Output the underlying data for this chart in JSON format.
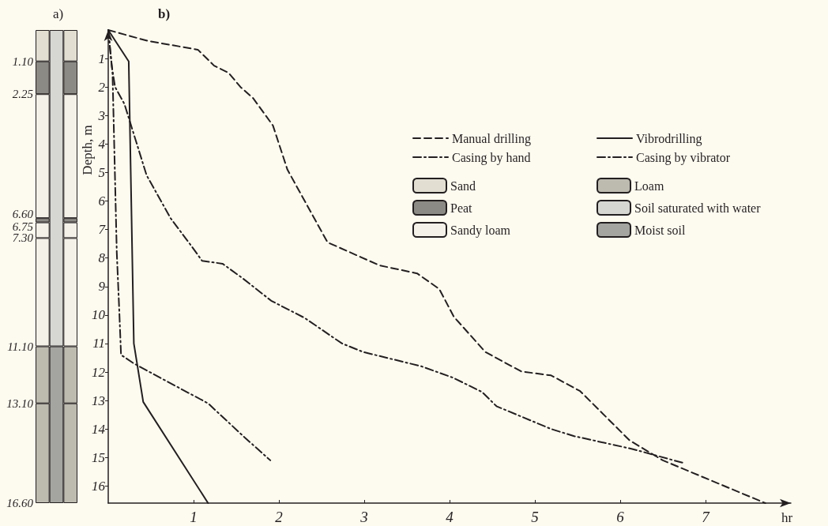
{
  "chart_data": [
    {
      "type": "bar",
      "title": "a)",
      "stacked": true,
      "categories": [
        null,
        null,
        null
      ],
      "ylim": [
        16.6,
        0
      ],
      "yticks": [
        {
          "value": 1.1,
          "label": "1.10"
        },
        {
          "value": 2.25,
          "label": "2.25"
        },
        {
          "value": 6.6,
          "label": "6.60"
        },
        {
          "value": 6.75,
          "label": "6.75"
        },
        {
          "value": 7.3,
          "label": "7.30"
        },
        {
          "value": 11.1,
          "label": "11.10"
        },
        {
          "value": 13.1,
          "label": "13.10"
        },
        {
          "value": 16.6,
          "label": "16.60"
        }
      ],
      "tick_labels": "y",
      "grid": false,
      "legend": "right",
      "series": [
        {
          "name": "Sand",
          "color": "#e2dfd2",
          "values": [
            1.1,
            null,
            1.1
          ]
        },
        {
          "name": "Peat",
          "color": "#8c8a84",
          "values": [
            1.15,
            null,
            1.15
          ]
        },
        {
          "name": "Sandy loam",
          "color": "#f3f1e8",
          "values": [
            4.35,
            null,
            4.35
          ]
        },
        {
          "color": "#8c8a84",
          "values": [
            0.15,
            null,
            0.15
          ]
        },
        {
          "color": "#f3f1e8",
          "values": [
            0.55,
            null,
            0.55
          ]
        },
        {
          "color": "#f3f1e8",
          "values": [
            3.8,
            null,
            3.8
          ]
        },
        {
          "name": "Loam",
          "color": "#bdbab0",
          "values": [
            2.0,
            null,
            2.0
          ]
        },
        {
          "color": "#bdbab0",
          "values": [
            3.5,
            null,
            3.5
          ]
        },
        {
          "name": "Soil saturated with water",
          "color": "#d6d6d2",
          "values": [
            null,
            11.1,
            null
          ]
        },
        {
          "name": "Moist soil",
          "color": "#a4a4a0",
          "values": [
            null,
            5.5,
            null
          ]
        }
      ]
    },
    {
      "type": "line",
      "title": "b)",
      "xlabel": "hr",
      "ylabel": "Depth, m",
      "xlim": [
        0,
        8
      ],
      "ylim": [
        16.6,
        0
      ],
      "xticks": [
        1,
        2,
        3,
        4,
        5,
        6,
        7
      ],
      "yticks": [
        1,
        2,
        3,
        4,
        5,
        6,
        7,
        8,
        9,
        10,
        11,
        12,
        13,
        14,
        15,
        16
      ],
      "grid": false,
      "legend": "right",
      "marker": "none",
      "series": [
        {
          "name": "Manual drilling",
          "color": "#231f20",
          "line_style": "dashed",
          "x": [
            0,
            0.46,
            1.05,
            1.24,
            1.41,
            1.55,
            1.7,
            1.93,
            2.1,
            2.57,
            3.18,
            3.62,
            3.88,
            4.05,
            4.42,
            4.84,
            5.19,
            5.53,
            6.11,
            6.5,
            7.7
          ],
          "values": [
            0,
            0.38,
            0.69,
            1.25,
            1.5,
            2.0,
            2.4,
            3.35,
            4.9,
            7.45,
            8.26,
            8.54,
            9.09,
            10.06,
            11.3,
            11.98,
            12.12,
            12.67,
            14.4,
            15.1,
            16.6
          ]
        },
        {
          "name": "Casing by hand",
          "color": "#231f20",
          "line_style": "dashdot",
          "x": [
            0,
            0.04,
            0.08,
            0.19,
            0.45,
            0.73,
            0.98,
            1.1,
            1.34,
            1.57,
            1.91,
            2.3,
            2.74,
            2.99,
            3.67,
            4.04,
            4.38,
            4.55,
            5.19,
            5.46,
            6.14,
            6.75
          ],
          "values": [
            0,
            1.24,
            2.0,
            2.6,
            5.1,
            6.6,
            7.6,
            8.1,
            8.2,
            8.7,
            9.5,
            10.1,
            11.0,
            11.3,
            11.8,
            12.2,
            12.7,
            13.2,
            14.0,
            14.25,
            14.7,
            15.2
          ]
        },
        {
          "name": "Vibrodrilling",
          "color": "#231f20",
          "line_style": "solid",
          "x": [
            0,
            0.24,
            0.3,
            0.41,
            1.17
          ],
          "values": [
            0,
            1.1,
            11.0,
            13.05,
            16.6
          ]
        },
        {
          "name": "Casing by vibrator",
          "color": "#231f20",
          "line_style": "dashdot",
          "x": [
            0,
            0.05,
            0.1,
            0.13,
            0.15,
            0.3,
            0.67,
            1.17,
            1.6,
            1.9
          ],
          "values": [
            0,
            1.5,
            7.8,
            9.9,
            11.4,
            11.7,
            12.3,
            13.1,
            14.3,
            15.1
          ]
        }
      ]
    }
  ]
}
